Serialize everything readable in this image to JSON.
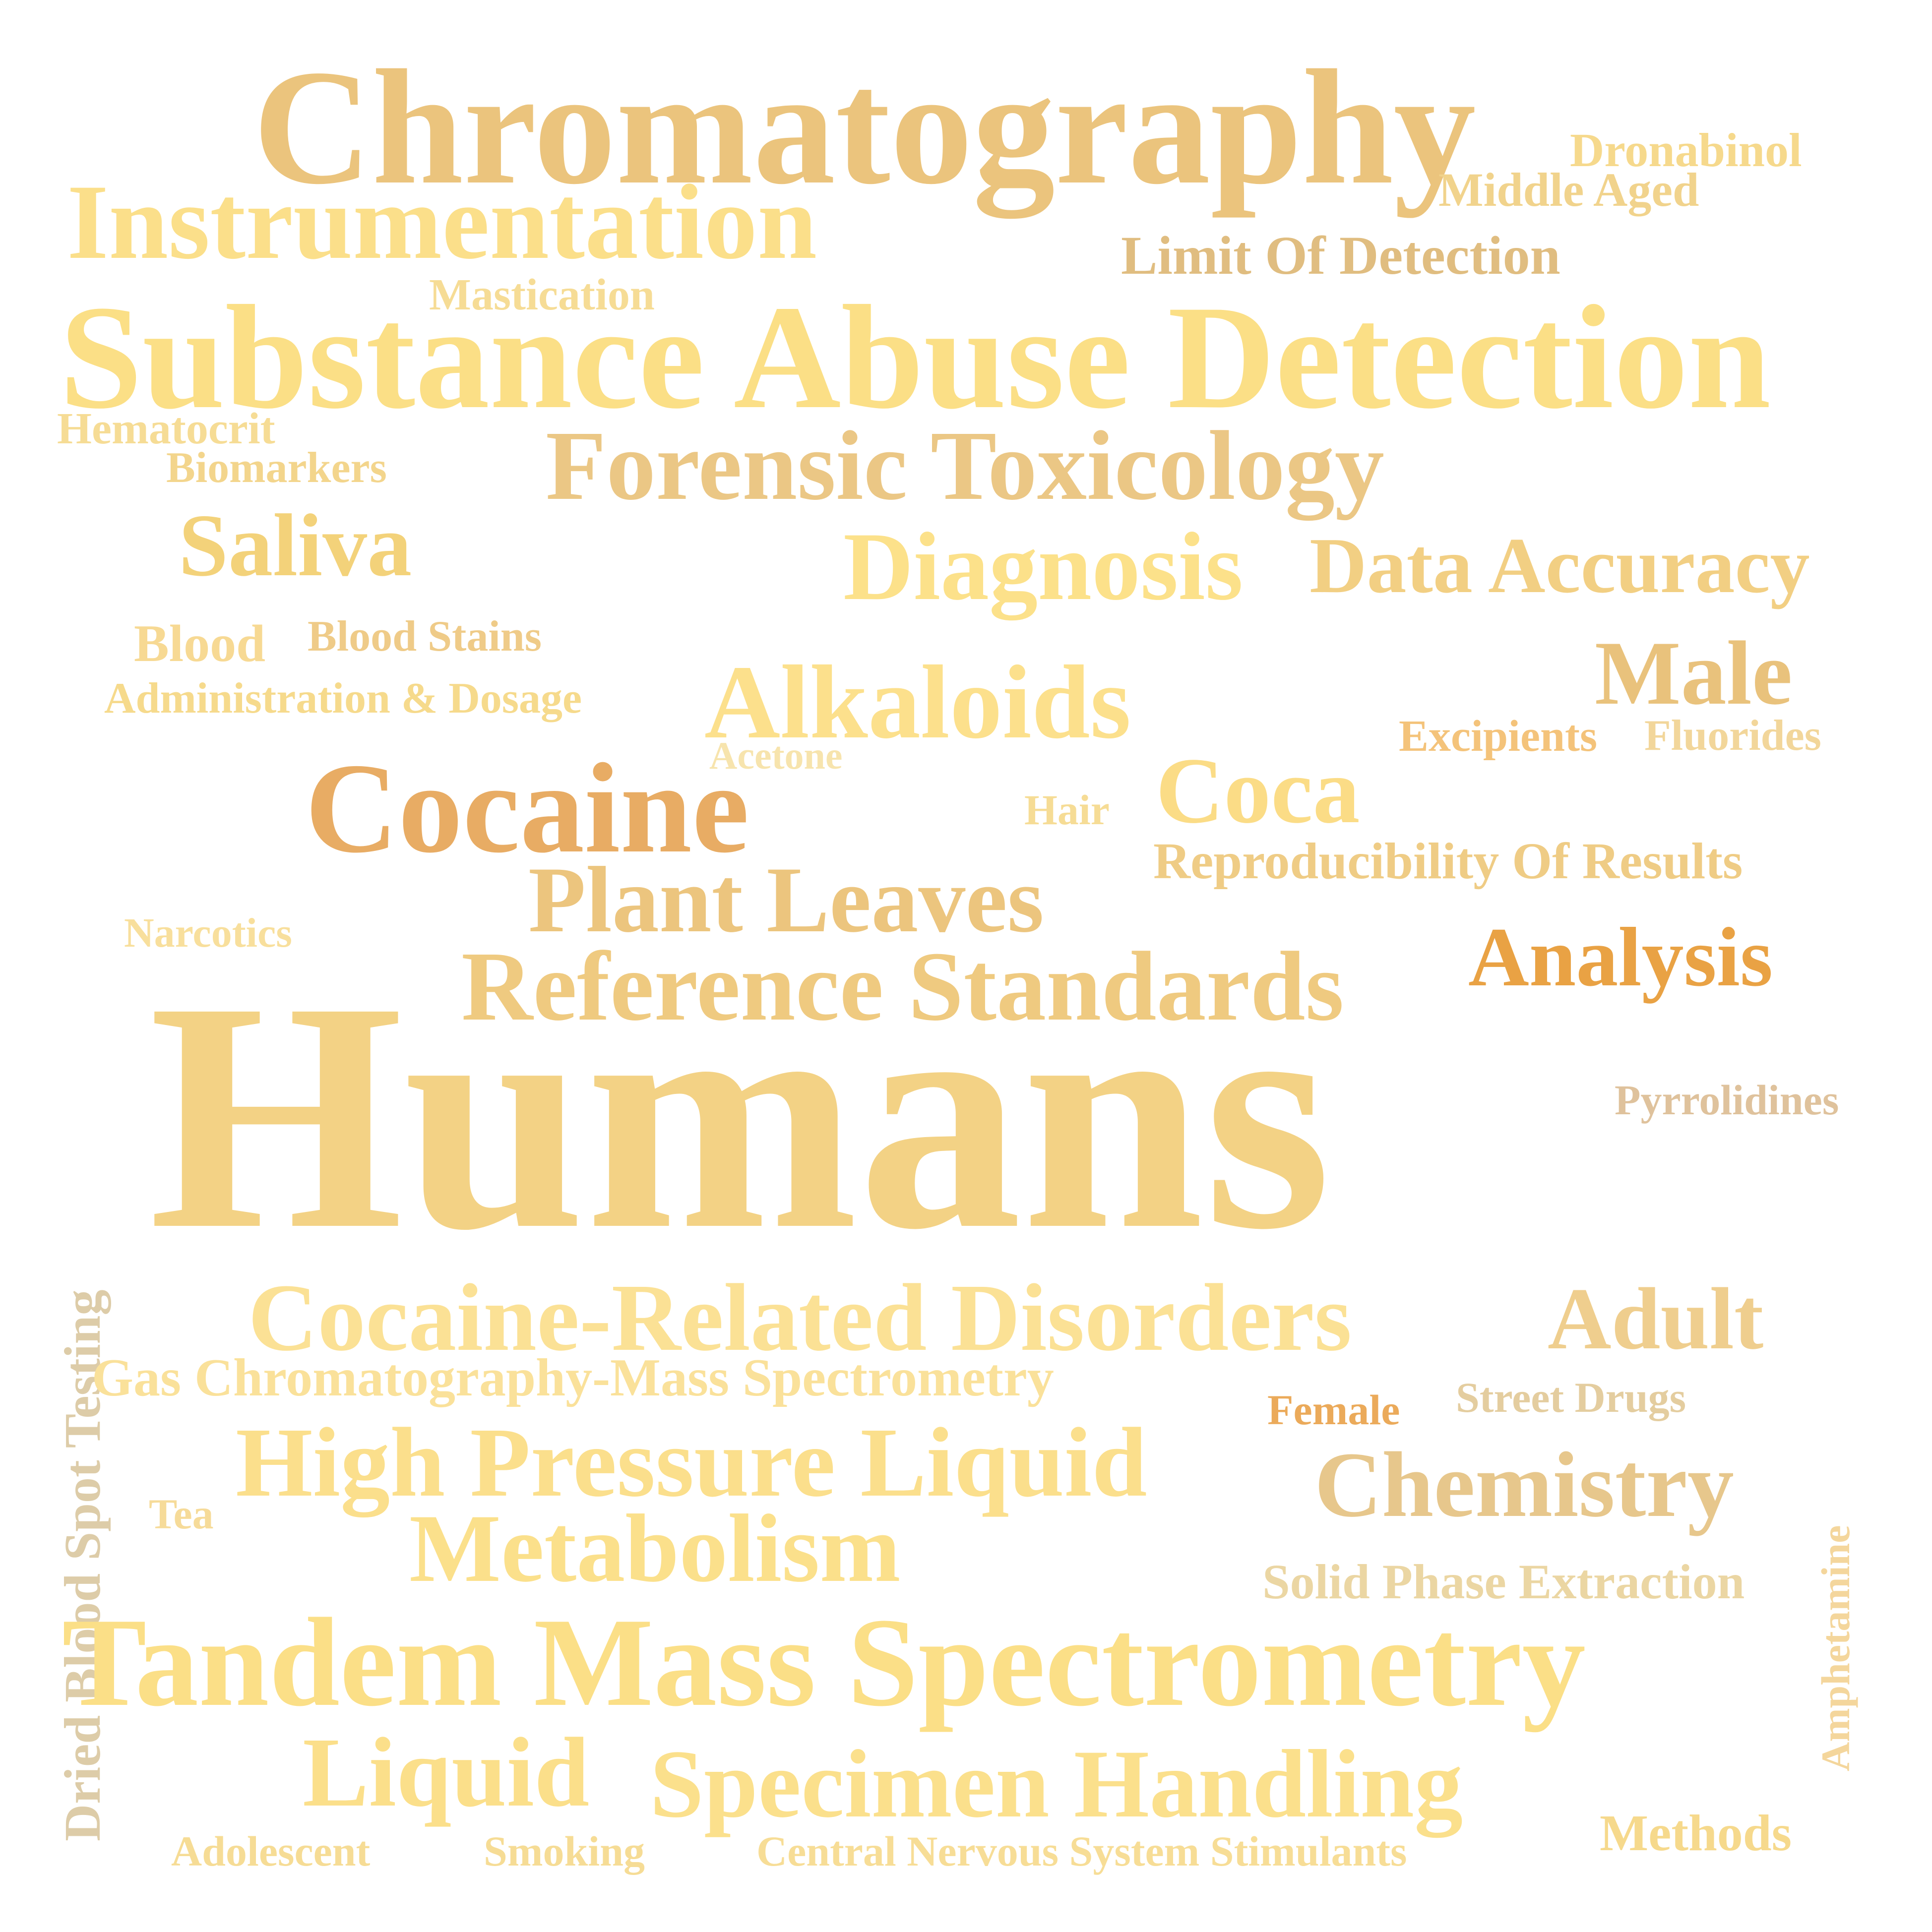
{
  "words": {
    "chromatography": "Chromatography",
    "dronabinol": "Dronabinol",
    "middle_aged": "Middle Aged",
    "instrumentation": "Instrumentation",
    "limit_of_detection": "Limit Of Detection",
    "mastication": "Mastication",
    "substance_abuse_detection": "Substance Abuse Detection",
    "hematocrit": "Hematocrit",
    "forensic_toxicology": "Forensic Toxicology",
    "biomarkers": "Biomarkers",
    "saliva": "Saliva",
    "diagnosis": "Diagnosis",
    "data_accuracy": "Data Accuracy",
    "blood": "Blood",
    "blood_stains": "Blood Stains",
    "male": "Male",
    "administration_dosage": "Administration & Dosage",
    "alkaloids": "Alkaloids",
    "excipients": "Excipients",
    "fluorides": "Fluorides",
    "acetone": "Acetone",
    "dried_blood_spot_testing": "Dried Blood Spot Testing",
    "cocaine": "Cocaine",
    "hair": "Hair",
    "coca": "Coca",
    "reproducibility_of_results": "Reproducibility Of Results",
    "plant_leaves": "Plant Leaves",
    "narcotics": "Narcotics",
    "analysis": "Analysis",
    "reference_standards": "Reference Standards",
    "humans": "Humans",
    "pyrrolidines": "Pyrrolidines",
    "cocaine_related_disorders": "Cocaine-Related Disorders",
    "adult": "Adult",
    "amphetamine": "Amphetamine",
    "gc_ms": "Gas Chromatography-Mass Spectrometry",
    "female": "Female",
    "street_drugs": "Street Drugs",
    "high_pressure_liquid": "High Pressure Liquid",
    "chemistry": "Chemistry",
    "tea": "Tea",
    "metabolism": "Metabolism",
    "solid_phase_extraction": "Solid Phase Extraction",
    "tandem_mass_spectrometry": "Tandem Mass Spectrometry",
    "liquid": "Liquid",
    "specimen_handling": "Specimen Handling",
    "methods": "Methods",
    "adolescent": "Adolescent",
    "smoking": "Smoking",
    "cns_stimulants": "Central Nervous System Stimulants"
  },
  "palette": {
    "background": "#ffffff",
    "gold": "#f3d285",
    "pale_yellow": "#fbdf8a",
    "tan": "#e0bd80",
    "orange": "#e9a244"
  }
}
